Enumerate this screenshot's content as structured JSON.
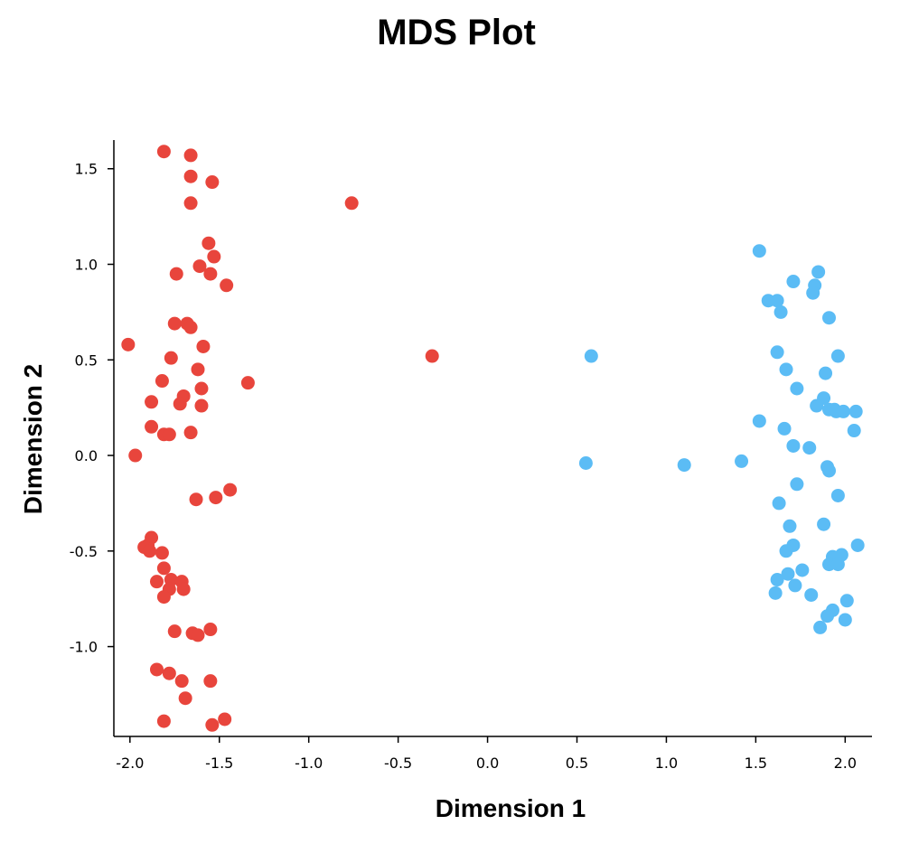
{
  "chart_data": {
    "type": "scatter",
    "title": "MDS Plot",
    "xlabel": "Dimension 1",
    "ylabel": "Dimension 2",
    "xlim": [
      -2.09,
      2.15
    ],
    "ylim": [
      -1.47,
      1.65
    ],
    "xticks": [
      "-2.0",
      "-1.5",
      "-1.0",
      "-0.5",
      "0.0",
      "0.5",
      "1.0",
      "1.5",
      "2.0"
    ],
    "yticks": [
      "-1.0",
      "-0.5",
      "0.0",
      "0.5",
      "1.0",
      "1.5"
    ],
    "grid": false,
    "legend": "none",
    "series": [
      {
        "color": "#e8453c",
        "points": [
          [
            -1.81,
            1.59
          ],
          [
            -1.66,
            1.57
          ],
          [
            -1.66,
            1.46
          ],
          [
            -1.54,
            1.43
          ],
          [
            -1.66,
            1.32
          ],
          [
            -0.76,
            1.32
          ],
          [
            -1.56,
            1.11
          ],
          [
            -1.53,
            1.04
          ],
          [
            -1.61,
            0.99
          ],
          [
            -1.74,
            0.95
          ],
          [
            -1.55,
            0.95
          ],
          [
            -1.46,
            0.89
          ],
          [
            -1.75,
            0.69
          ],
          [
            -1.68,
            0.69
          ],
          [
            -1.66,
            0.67
          ],
          [
            -2.01,
            0.58
          ],
          [
            -1.59,
            0.57
          ],
          [
            -1.77,
            0.51
          ],
          [
            -0.31,
            0.52
          ],
          [
            -1.62,
            0.45
          ],
          [
            -1.82,
            0.39
          ],
          [
            -1.34,
            0.38
          ],
          [
            -1.6,
            0.35
          ],
          [
            -1.7,
            0.31
          ],
          [
            -1.88,
            0.28
          ],
          [
            -1.72,
            0.27
          ],
          [
            -1.6,
            0.26
          ],
          [
            -1.88,
            0.15
          ],
          [
            -1.66,
            0.12
          ],
          [
            -1.81,
            0.11
          ],
          [
            -1.78,
            0.11
          ],
          [
            -1.97,
            0.0
          ],
          [
            -1.44,
            -0.18
          ],
          [
            -1.52,
            -0.22
          ],
          [
            -1.63,
            -0.23
          ],
          [
            -1.88,
            -0.43
          ],
          [
            -1.9,
            -0.47
          ],
          [
            -1.92,
            -0.48
          ],
          [
            -1.89,
            -0.5
          ],
          [
            -1.82,
            -0.51
          ],
          [
            -1.81,
            -0.59
          ],
          [
            -1.85,
            -0.66
          ],
          [
            -1.77,
            -0.65
          ],
          [
            -1.71,
            -0.66
          ],
          [
            -1.78,
            -0.7
          ],
          [
            -1.7,
            -0.7
          ],
          [
            -1.81,
            -0.74
          ],
          [
            -1.75,
            -0.92
          ],
          [
            -1.55,
            -0.91
          ],
          [
            -1.65,
            -0.93
          ],
          [
            -1.62,
            -0.94
          ],
          [
            -1.85,
            -1.12
          ],
          [
            -1.78,
            -1.14
          ],
          [
            -1.71,
            -1.18
          ],
          [
            -1.55,
            -1.18
          ],
          [
            -1.69,
            -1.27
          ],
          [
            -1.47,
            -1.38
          ],
          [
            -1.81,
            -1.39
          ],
          [
            -1.54,
            -1.41
          ]
        ]
      },
      {
        "color": "#5bbcf5",
        "points": [
          [
            1.52,
            1.07
          ],
          [
            1.85,
            0.96
          ],
          [
            1.71,
            0.91
          ],
          [
            1.83,
            0.89
          ],
          [
            1.82,
            0.85
          ],
          [
            1.57,
            0.81
          ],
          [
            1.62,
            0.81
          ],
          [
            1.64,
            0.75
          ],
          [
            1.91,
            0.72
          ],
          [
            1.62,
            0.54
          ],
          [
            1.96,
            0.52
          ],
          [
            0.58,
            0.52
          ],
          [
            1.67,
            0.45
          ],
          [
            1.89,
            0.43
          ],
          [
            1.73,
            0.35
          ],
          [
            1.88,
            0.3
          ],
          [
            1.84,
            0.26
          ],
          [
            1.91,
            0.24
          ],
          [
            1.94,
            0.24
          ],
          [
            1.95,
            0.23
          ],
          [
            1.99,
            0.23
          ],
          [
            2.06,
            0.23
          ],
          [
            1.52,
            0.18
          ],
          [
            1.66,
            0.14
          ],
          [
            2.05,
            0.13
          ],
          [
            1.71,
            0.05
          ],
          [
            1.8,
            0.04
          ],
          [
            1.9,
            -0.06
          ],
          [
            1.91,
            -0.08
          ],
          [
            0.55,
            -0.04
          ],
          [
            1.1,
            -0.05
          ],
          [
            1.42,
            -0.03
          ],
          [
            1.73,
            -0.15
          ],
          [
            1.96,
            -0.21
          ],
          [
            1.63,
            -0.25
          ],
          [
            1.88,
            -0.36
          ],
          [
            1.69,
            -0.37
          ],
          [
            1.71,
            -0.47
          ],
          [
            2.07,
            -0.47
          ],
          [
            1.67,
            -0.5
          ],
          [
            1.93,
            -0.53
          ],
          [
            1.98,
            -0.52
          ],
          [
            1.91,
            -0.57
          ],
          [
            1.96,
            -0.57
          ],
          [
            1.76,
            -0.6
          ],
          [
            1.68,
            -0.62
          ],
          [
            1.62,
            -0.65
          ],
          [
            1.72,
            -0.68
          ],
          [
            1.61,
            -0.72
          ],
          [
            1.81,
            -0.73
          ],
          [
            2.01,
            -0.76
          ],
          [
            1.93,
            -0.81
          ],
          [
            1.9,
            -0.84
          ],
          [
            2.0,
            -0.86
          ],
          [
            1.86,
            -0.9
          ]
        ]
      }
    ]
  }
}
